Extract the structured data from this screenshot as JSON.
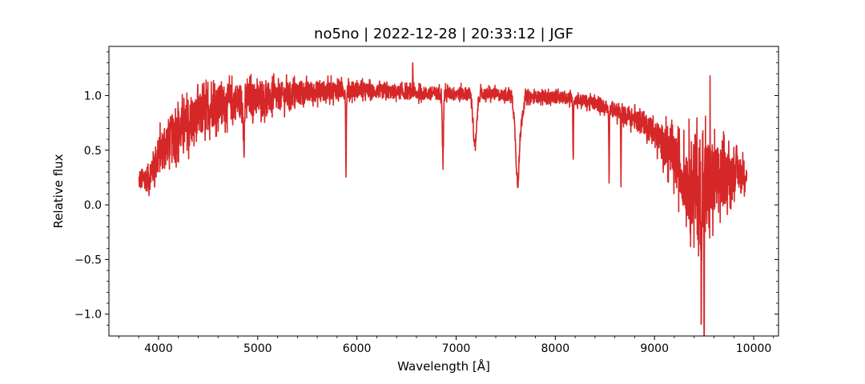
{
  "chart_data": {
    "type": "line",
    "title": "no5no | 2022-12-28 | 20:33:12 | JGF",
    "xlabel": "Wavelength [Å]",
    "ylabel": "Relative flux",
    "xlim": [
      3500,
      10250
    ],
    "ylim": [
      -1.2,
      1.45
    ],
    "x_ticks": [
      4000,
      5000,
      6000,
      7000,
      8000,
      9000,
      10000
    ],
    "x_tick_labels": [
      "4000",
      "5000",
      "6000",
      "7000",
      "8000",
      "9000",
      "10000"
    ],
    "y_ticks": [
      -1.0,
      -0.5,
      0.0,
      0.5,
      1.0
    ],
    "y_tick_labels": [
      "−1.0",
      "−0.5",
      "0.0",
      "0.5",
      "1.0"
    ],
    "grid": false,
    "line_color": "#d62728",
    "series": [
      {
        "x_start": 3800,
        "x_end": 9930,
        "continuum_x": [
          3800,
          3900,
          4000,
          4100,
          4200,
          4300,
          4400,
          4500,
          4600,
          4800,
          5000,
          5200,
          5400,
          5600,
          5800,
          6000,
          6200,
          6400,
          6600,
          6800,
          7000,
          7200,
          7400,
          7560,
          7620,
          7700,
          7900,
          8100,
          8300,
          8500,
          8700,
          8900,
          9100,
          9300,
          9400,
          9500,
          9600,
          9700,
          9800,
          9930
        ],
        "continuum_y": [
          0.22,
          0.25,
          0.45,
          0.6,
          0.68,
          0.72,
          0.8,
          0.88,
          0.92,
          0.95,
          0.97,
          0.99,
          1.02,
          1.04,
          1.05,
          1.05,
          1.04,
          1.03,
          1.02,
          1.02,
          1.02,
          1.02,
          1.01,
          1.0,
          0.62,
          0.99,
          0.99,
          0.98,
          0.95,
          0.9,
          0.82,
          0.75,
          0.55,
          0.25,
          0.2,
          0.1,
          0.2,
          0.25,
          0.3,
          0.28
        ],
        "noise_x": [
          3800,
          4000,
          4300,
          4600,
          5000,
          5500,
          6000,
          6500,
          7000,
          7500,
          7600,
          7700,
          8000,
          8500,
          8800,
          9000,
          9300,
          9400,
          9500,
          9600,
          9800,
          9930
        ],
        "noise_amp": [
          0.08,
          0.18,
          0.22,
          0.18,
          0.15,
          0.1,
          0.07,
          0.06,
          0.06,
          0.05,
          0.06,
          0.05,
          0.05,
          0.06,
          0.09,
          0.12,
          0.28,
          0.45,
          0.55,
          0.35,
          0.18,
          0.12
        ],
        "absorption_lines": [
          {
            "x": 4861,
            "depth": 0.55,
            "width": 6
          },
          {
            "x": 5890,
            "depth": 0.72,
            "width": 5
          },
          {
            "x": 6867,
            "depth": 0.62,
            "width": 8
          },
          {
            "x": 7190,
            "depth": 0.5,
            "width": 25
          },
          {
            "x": 7620,
            "depth": 0.42,
            "width": 25
          },
          {
            "x": 8180,
            "depth": 0.6,
            "width": 4
          },
          {
            "x": 8542,
            "depth": 0.62,
            "width": 4
          },
          {
            "x": 8662,
            "depth": 0.6,
            "width": 4
          },
          {
            "x": 9470,
            "depth": 0.9,
            "width": 4
          },
          {
            "x": 9500,
            "depth": 1.3,
            "width": 3
          }
        ],
        "emission_lines": [
          {
            "x": 6563,
            "height": 0.3,
            "width": 3
          },
          {
            "x": 9560,
            "height": 0.75,
            "width": 3
          }
        ]
      }
    ]
  }
}
